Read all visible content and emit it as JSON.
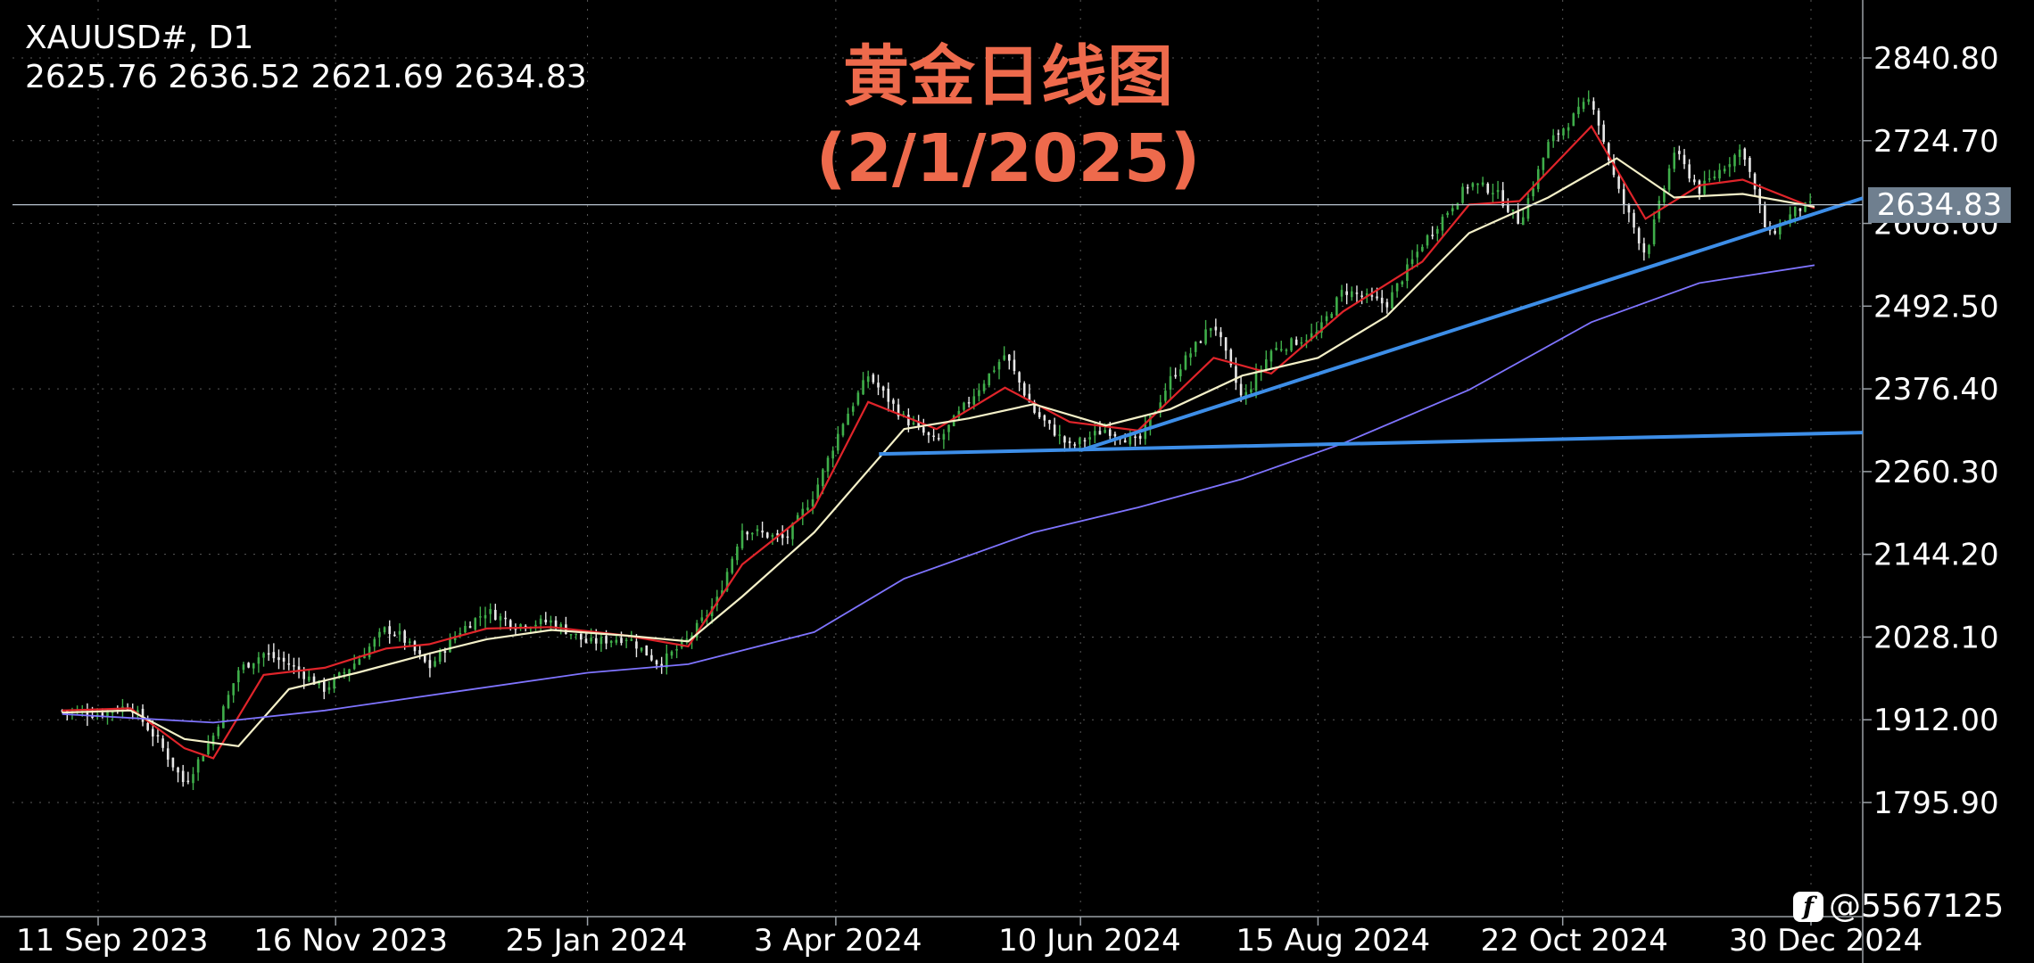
{
  "header": {
    "symbol_timeframe": "XAUUSD#, D1",
    "ohlc": "2625.76 2636.52 2621.69 2634.83"
  },
  "title": {
    "line1": "黄金日线图",
    "line2": "(2/1/2025)"
  },
  "watermark": {
    "icon": "facebook-icon",
    "text": "@5567125"
  },
  "current_price": {
    "label": "2634.83",
    "value": 2634.83
  },
  "colors": {
    "background": "#000000",
    "up_candle": "#3fae4a",
    "down_candle": "#e8e8e8",
    "ma_fast": "#e0242a",
    "ma_mid": "#f4f0c8",
    "ma_slow": "#7f74ff",
    "trendline": "#3d8ee8",
    "title": "#ee6a4c",
    "price_line": "#b9c3cf"
  },
  "chart_data": {
    "type": "candlestick",
    "yaxis_ticks": [
      "2840.80",
      "2724.70",
      "2608.60",
      "2492.50",
      "2376.40",
      "2260.30",
      "2144.20",
      "2028.10",
      "1912.00",
      "1795.90"
    ],
    "ylim": [
      1740,
      2870
    ],
    "xaxis_ticks": [
      "11 Sep 2023",
      "16 Nov 2023",
      "25 Jan 2024",
      "3 Apr 2024",
      "10 Jun 2024",
      "15 Aug 2024",
      "22 Oct 2024",
      "30 Dec 2024"
    ],
    "close_series": [
      [
        "2023-09-01",
        1925
      ],
      [
        "2023-09-11",
        1920
      ],
      [
        "2023-09-20",
        1932
      ],
      [
        "2023-09-28",
        1880
      ],
      [
        "2023-10-05",
        1822
      ],
      [
        "2023-10-13",
        1890
      ],
      [
        "2023-10-20",
        1982
      ],
      [
        "2023-10-27",
        2005
      ],
      [
        "2023-11-03",
        1990
      ],
      [
        "2023-11-13",
        1955
      ],
      [
        "2023-11-22",
        1995
      ],
      [
        "2023-11-30",
        2040
      ],
      [
        "2023-12-04",
        2030
      ],
      [
        "2023-12-12",
        1985
      ],
      [
        "2023-12-20",
        2035
      ],
      [
        "2023-12-28",
        2065
      ],
      [
        "2024-01-05",
        2045
      ],
      [
        "2024-01-15",
        2050
      ],
      [
        "2024-01-25",
        2020
      ],
      [
        "2024-02-05",
        2028
      ],
      [
        "2024-02-14",
        1990
      ],
      [
        "2024-02-22",
        2025
      ],
      [
        "2024-03-01",
        2080
      ],
      [
        "2024-03-08",
        2180
      ],
      [
        "2024-03-20",
        2165
      ],
      [
        "2024-03-28",
        2230
      ],
      [
        "2024-04-05",
        2330
      ],
      [
        "2024-04-12",
        2395
      ],
      [
        "2024-04-22",
        2335
      ],
      [
        "2024-05-01",
        2300
      ],
      [
        "2024-05-10",
        2360
      ],
      [
        "2024-05-20",
        2425
      ],
      [
        "2024-05-28",
        2345
      ],
      [
        "2024-06-07",
        2295
      ],
      [
        "2024-06-17",
        2320
      ],
      [
        "2024-06-26",
        2300
      ],
      [
        "2024-07-05",
        2390
      ],
      [
        "2024-07-17",
        2470
      ],
      [
        "2024-07-25",
        2360
      ],
      [
        "2024-08-02",
        2430
      ],
      [
        "2024-08-15",
        2455
      ],
      [
        "2024-08-22",
        2515
      ],
      [
        "2024-09-03",
        2495
      ],
      [
        "2024-09-13",
        2580
      ],
      [
        "2024-09-26",
        2665
      ],
      [
        "2024-10-03",
        2655
      ],
      [
        "2024-10-10",
        2610
      ],
      [
        "2024-10-18",
        2720
      ],
      [
        "2024-10-30",
        2785
      ],
      [
        "2024-11-06",
        2660
      ],
      [
        "2024-11-14",
        2565
      ],
      [
        "2024-11-22",
        2710
      ],
      [
        "2024-11-29",
        2655
      ],
      [
        "2024-12-11",
        2715
      ],
      [
        "2024-12-18",
        2590
      ],
      [
        "2024-12-26",
        2628
      ],
      [
        "2024-12-31",
        2634.83
      ]
    ],
    "moving_averages": [
      {
        "color_key": "ma_fast",
        "points": [
          [
            "2023-09-01",
            1925
          ],
          [
            "2023-09-20",
            1928
          ],
          [
            "2023-10-05",
            1872
          ],
          [
            "2023-10-13",
            1858
          ],
          [
            "2023-10-27",
            1975
          ],
          [
            "2023-11-13",
            1985
          ],
          [
            "2023-11-30",
            2012
          ],
          [
            "2023-12-12",
            2018
          ],
          [
            "2023-12-28",
            2040
          ],
          [
            "2024-01-15",
            2042
          ],
          [
            "2024-02-05",
            2030
          ],
          [
            "2024-02-22",
            2015
          ],
          [
            "2024-03-08",
            2130
          ],
          [
            "2024-03-28",
            2210
          ],
          [
            "2024-04-12",
            2358
          ],
          [
            "2024-05-01",
            2320
          ],
          [
            "2024-05-20",
            2378
          ],
          [
            "2024-06-07",
            2330
          ],
          [
            "2024-06-26",
            2318
          ],
          [
            "2024-07-17",
            2420
          ],
          [
            "2024-08-02",
            2398
          ],
          [
            "2024-08-22",
            2485
          ],
          [
            "2024-09-13",
            2555
          ],
          [
            "2024-09-26",
            2635
          ],
          [
            "2024-10-10",
            2640
          ],
          [
            "2024-10-30",
            2745
          ],
          [
            "2024-11-14",
            2615
          ],
          [
            "2024-11-29",
            2662
          ],
          [
            "2024-12-11",
            2670
          ],
          [
            "2024-12-31",
            2630
          ]
        ]
      },
      {
        "color_key": "ma_mid",
        "points": [
          [
            "2023-09-01",
            1922
          ],
          [
            "2023-09-20",
            1925
          ],
          [
            "2023-10-05",
            1885
          ],
          [
            "2023-10-20",
            1875
          ],
          [
            "2023-11-03",
            1955
          ],
          [
            "2023-11-22",
            1978
          ],
          [
            "2023-12-12",
            2005
          ],
          [
            "2023-12-28",
            2025
          ],
          [
            "2024-01-15",
            2038
          ],
          [
            "2024-02-05",
            2030
          ],
          [
            "2024-02-22",
            2022
          ],
          [
            "2024-03-08",
            2085
          ],
          [
            "2024-03-28",
            2175
          ],
          [
            "2024-04-22",
            2320
          ],
          [
            "2024-05-10",
            2335
          ],
          [
            "2024-05-28",
            2355
          ],
          [
            "2024-06-17",
            2325
          ],
          [
            "2024-07-05",
            2348
          ],
          [
            "2024-07-25",
            2395
          ],
          [
            "2024-08-15",
            2420
          ],
          [
            "2024-09-03",
            2478
          ],
          [
            "2024-09-26",
            2595
          ],
          [
            "2024-10-18",
            2645
          ],
          [
            "2024-11-06",
            2700
          ],
          [
            "2024-11-22",
            2645
          ],
          [
            "2024-12-11",
            2650
          ],
          [
            "2024-12-31",
            2632
          ]
        ]
      },
      {
        "color_key": "ma_slow",
        "points": [
          [
            "2023-09-01",
            1920
          ],
          [
            "2023-10-13",
            1908
          ],
          [
            "2023-11-13",
            1925
          ],
          [
            "2023-12-20",
            1952
          ],
          [
            "2024-01-25",
            1978
          ],
          [
            "2024-02-22",
            1990
          ],
          [
            "2024-03-28",
            2035
          ],
          [
            "2024-04-22",
            2110
          ],
          [
            "2024-05-28",
            2175
          ],
          [
            "2024-06-26",
            2210
          ],
          [
            "2024-07-25",
            2250
          ],
          [
            "2024-08-22",
            2300
          ],
          [
            "2024-09-26",
            2375
          ],
          [
            "2024-10-30",
            2470
          ],
          [
            "2024-11-29",
            2525
          ],
          [
            "2024-12-31",
            2550
          ]
        ]
      }
    ],
    "trendlines": [
      {
        "from": [
          "2024-04-15",
          2285
        ],
        "to": [
          "2025-01-18",
          2315
        ]
      },
      {
        "from": [
          "2024-06-10",
          2290
        ],
        "to": [
          "2025-01-18",
          2644
        ]
      }
    ],
    "current_price_line": 2634.83,
    "grid": "dotted"
  }
}
